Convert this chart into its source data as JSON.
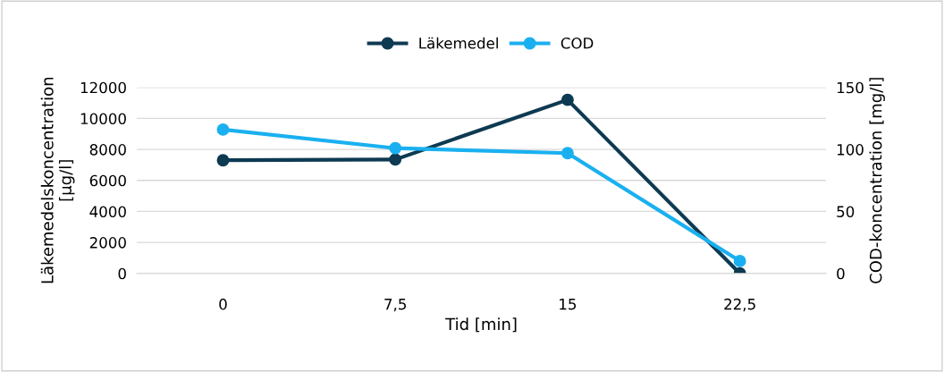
{
  "chart_data": {
    "type": "line",
    "xlabel": "Tid [min]",
    "ylabel": "Läkemedelskoncentration\n[µg/l]",
    "y2label": "COD-koncentration [mg/l]",
    "categories": [
      "0",
      "7,5",
      "15",
      "22,5"
    ],
    "series": [
      {
        "name": "Läkemedel",
        "color": "#0e3a52",
        "values": [
          7300,
          7350,
          11200,
          0
        ]
      },
      {
        "name": "COD",
        "color": "#1ab0f0",
        "values": [
          116,
          101,
          97,
          10
        ],
        "axis": "y2"
      }
    ],
    "ylim": [
      0,
      12000
    ],
    "yticks": [
      0,
      2000,
      4000,
      6000,
      8000,
      10000,
      12000
    ],
    "y2lim": [
      0,
      150
    ],
    "y2ticks": [
      0,
      50,
      100,
      150
    ],
    "grid": "y",
    "legend": "top",
    "marker": "circle",
    "line_style": "solid"
  }
}
